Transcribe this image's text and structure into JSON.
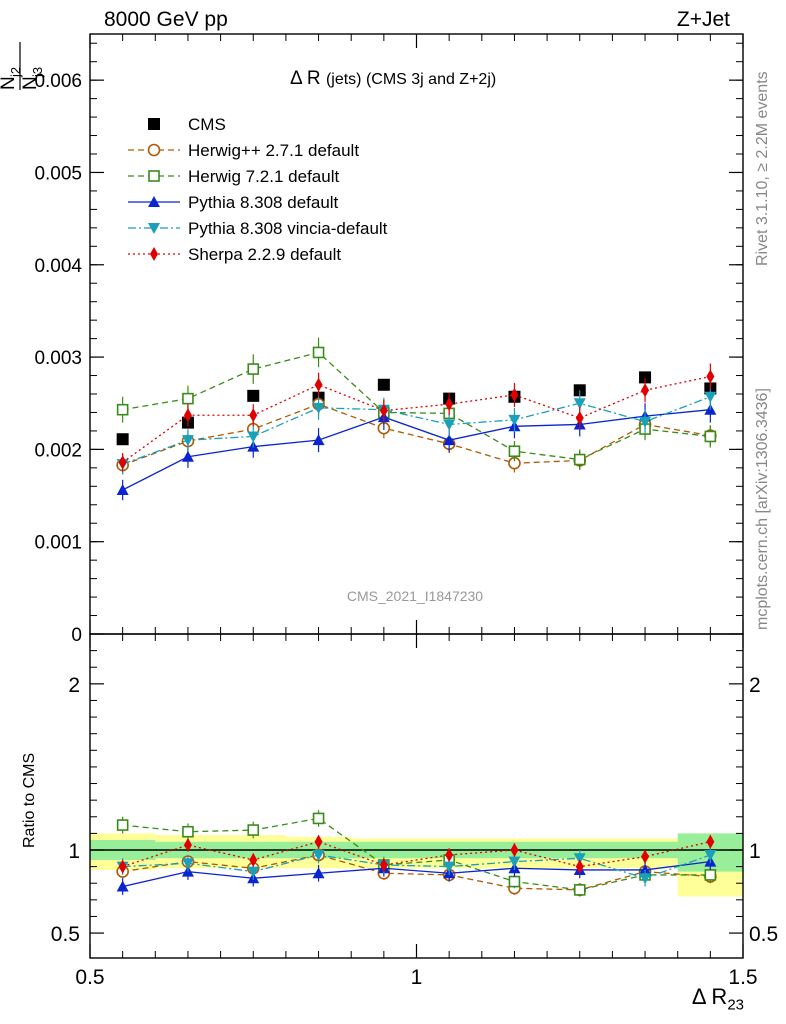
{
  "header": {
    "left": "8000 GeV pp",
    "right": "Z+Jet"
  },
  "side_text": {
    "top": "Rivet 3.1.10, ≥ 2.2M events",
    "bottom": "mcplots.cern.ch [arXiv:1306.3436]"
  },
  "analysis_id": "CMS_2021_I1847230",
  "plot_title": {
    "main": "Δ R",
    "detail": "(jets) (CMS 3j and Z+2j)"
  },
  "axes": {
    "y_main_num": "N",
    "y_main_num_sub": "j3",
    "y_main_den": "N",
    "y_main_den_sub": "j2",
    "y_ratio": "Ratio to CMS",
    "x_main": "Δ R",
    "x_sub": "23"
  },
  "chart_data": [
    {
      "type": "scatter",
      "panel": "main",
      "x": [
        0.55,
        0.65,
        0.75,
        0.85,
        0.95,
        1.05,
        1.15,
        1.25,
        1.35,
        1.45
      ],
      "xlim": [
        0.5,
        1.5
      ],
      "ylim": [
        0,
        0.0065
      ],
      "y_ticks": [
        {
          "v": 0,
          "label": "0"
        },
        {
          "v": 0.001,
          "label": "0.001"
        },
        {
          "v": 0.002,
          "label": "0.002"
        },
        {
          "v": 0.003,
          "label": "0.003"
        },
        {
          "v": 0.004,
          "label": "0.004"
        },
        {
          "v": 0.005,
          "label": "0.005"
        },
        {
          "v": 0.006,
          "label": "0.006"
        }
      ],
      "legend_position": "top-left",
      "series": [
        {
          "name": "CMS",
          "marker": "square-filled",
          "color": "#000000",
          "line": "none",
          "values": [
            0.00211,
            0.00229,
            0.00258,
            0.00256,
            0.0027,
            0.00255,
            0.00257,
            0.00264,
            0.00278,
            0.00266
          ],
          "err": [
            3e-05,
            3e-05,
            3e-05,
            3e-05,
            3e-05,
            3e-05,
            3e-05,
            3e-05,
            3e-05,
            3e-05
          ]
        },
        {
          "name": "Herwig++ 2.7.1 default",
          "marker": "circle-open",
          "color": "#b05a00",
          "line": "dash",
          "values": [
            0.00183,
            0.00209,
            0.00222,
            0.00249,
            0.00223,
            0.00206,
            0.00185,
            0.00188,
            0.00227,
            0.00215
          ],
          "err": [
            0.0001,
            0.00011,
            0.00011,
            0.00012,
            0.00011,
            0.0001,
            0.0001,
            0.0001,
            0.00011,
            0.00011
          ]
        },
        {
          "name": "Herwig 7.2.1 default",
          "marker": "square-open",
          "color": "#3a8c1a",
          "line": "dash",
          "values": [
            0.00243,
            0.00255,
            0.00287,
            0.00305,
            0.0024,
            0.00239,
            0.00198,
            0.00189,
            0.00222,
            0.00214
          ],
          "err": [
            0.00014,
            0.00014,
            0.00016,
            0.00016,
            0.00013,
            0.00013,
            0.00011,
            0.00011,
            0.00012,
            0.00012
          ]
        },
        {
          "name": "Pythia 8.308 default",
          "marker": "triangle-up",
          "color": "#0a24d0",
          "line": "solid",
          "values": [
            0.00156,
            0.00192,
            0.00203,
            0.0021,
            0.00235,
            0.0021,
            0.00225,
            0.00227,
            0.00236,
            0.00243
          ],
          "err": [
            0.00011,
            0.00012,
            0.00012,
            0.00013,
            0.00014,
            0.00013,
            0.00013,
            0.00013,
            0.00014,
            0.00014
          ]
        },
        {
          "name": "Pythia 8.308 vincia-default",
          "marker": "triangle-down",
          "color": "#1aa0b8",
          "line": "dashdot",
          "values": [
            0.00184,
            0.0021,
            0.00214,
            0.00245,
            0.00243,
            0.00227,
            0.00232,
            0.0025,
            0.0023,
            0.00257
          ],
          "err": [
            0.00011,
            0.00012,
            0.00012,
            0.00013,
            0.00013,
            0.00013,
            0.00013,
            0.00014,
            0.00013,
            0.00014
          ]
        },
        {
          "name": "Sherpa 2.2.9 default",
          "marker": "diamond",
          "color": "#e00000",
          "line": "dot",
          "values": [
            0.00186,
            0.00237,
            0.00237,
            0.0027,
            0.00242,
            0.00249,
            0.00259,
            0.00234,
            0.00264,
            0.00279
          ],
          "err": [
            0.0001,
            0.00012,
            0.00012,
            0.00013,
            0.00012,
            0.00012,
            0.00013,
            0.00012,
            0.00013,
            0.00014
          ]
        }
      ]
    },
    {
      "type": "line",
      "panel": "ratio",
      "x": [
        0.55,
        0.65,
        0.75,
        0.85,
        0.95,
        1.05,
        1.15,
        1.25,
        1.35,
        1.45
      ],
      "xlim": [
        0.5,
        1.5
      ],
      "ylim": [
        0.35,
        2.3
      ],
      "x_ticks": [
        {
          "v": 0.5,
          "label": "0.5"
        },
        {
          "v": 1,
          "label": "1"
        },
        {
          "v": 1.5,
          "label": "1.5"
        }
      ],
      "y_ticks": [
        {
          "v": 0.5,
          "label": "0.5"
        },
        {
          "v": 1,
          "label": "1"
        },
        {
          "v": 2,
          "label": "2"
        }
      ],
      "band_stat": {
        "lo": [
          0.94,
          0.95,
          0.95,
          0.95,
          0.95,
          0.95,
          0.95,
          0.95,
          0.95,
          0.87
        ],
        "hi": [
          1.06,
          1.05,
          1.05,
          1.05,
          1.05,
          1.05,
          1.05,
          1.05,
          1.05,
          1.1
        ]
      },
      "band_total": {
        "lo": [
          0.88,
          0.89,
          0.89,
          0.89,
          0.89,
          0.89,
          0.89,
          0.89,
          0.89,
          0.72
        ],
        "hi": [
          1.1,
          1.09,
          1.09,
          1.08,
          1.07,
          1.07,
          1.07,
          1.07,
          1.07,
          1.08
        ]
      },
      "series": [
        {
          "name": "Herwig++ 2.7.1 default",
          "marker": "circle-open",
          "color": "#b05a00",
          "line": "dash",
          "values": [
            0.87,
            0.93,
            0.89,
            0.97,
            0.86,
            0.85,
            0.77,
            0.76,
            0.87,
            0.84
          ],
          "err": [
            0.04,
            0.04,
            0.04,
            0.04,
            0.04,
            0.04,
            0.04,
            0.04,
            0.04,
            0.04
          ]
        },
        {
          "name": "Herwig 7.2.1 default",
          "marker": "square-open",
          "color": "#3a8c1a",
          "line": "dash",
          "values": [
            1.15,
            1.11,
            1.12,
            1.19,
            0.91,
            0.94,
            0.81,
            0.76,
            0.85,
            0.85
          ],
          "err": [
            0.05,
            0.05,
            0.05,
            0.05,
            0.04,
            0.04,
            0.04,
            0.04,
            0.04,
            0.04
          ]
        },
        {
          "name": "Pythia 8.308 default",
          "marker": "triangle-up",
          "color": "#0a24d0",
          "line": "solid",
          "values": [
            0.78,
            0.87,
            0.83,
            0.86,
            0.89,
            0.86,
            0.89,
            0.88,
            0.88,
            0.93
          ],
          "err": [
            0.05,
            0.05,
            0.05,
            0.05,
            0.05,
            0.05,
            0.05,
            0.05,
            0.05,
            0.05
          ]
        },
        {
          "name": "Pythia 8.308 vincia-default",
          "marker": "triangle-down",
          "color": "#1aa0b8",
          "line": "dashdot",
          "values": [
            0.9,
            0.92,
            0.87,
            0.97,
            0.91,
            0.9,
            0.93,
            0.95,
            0.83,
            0.97
          ],
          "err": [
            0.05,
            0.05,
            0.05,
            0.05,
            0.05,
            0.05,
            0.05,
            0.05,
            0.05,
            0.05
          ]
        },
        {
          "name": "Sherpa 2.2.9 default",
          "marker": "diamond",
          "color": "#e00000",
          "line": "dot",
          "values": [
            0.9,
            1.03,
            0.94,
            1.05,
            0.91,
            0.97,
            1.0,
            0.9,
            0.96,
            1.05
          ],
          "err": [
            0.04,
            0.04,
            0.04,
            0.04,
            0.04,
            0.04,
            0.04,
            0.04,
            0.04,
            0.04
          ]
        }
      ]
    }
  ]
}
